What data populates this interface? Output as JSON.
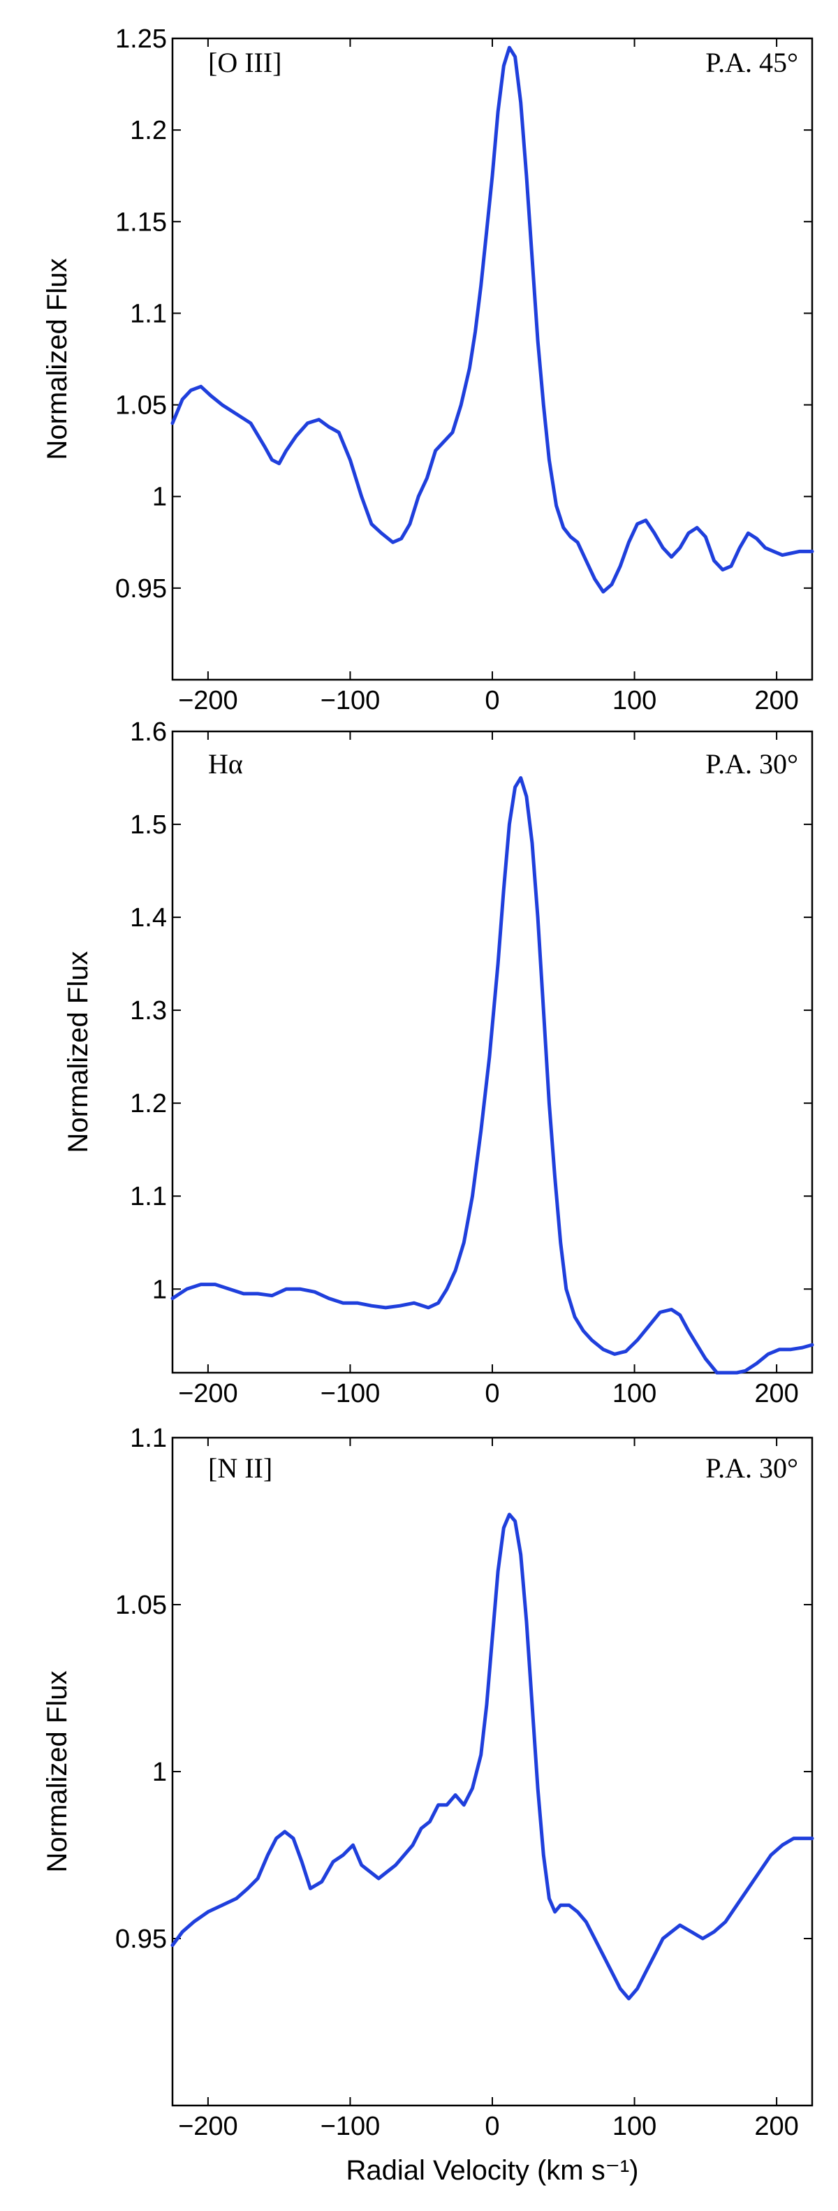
{
  "colors": {
    "line": "#1f3fdc",
    "axes": "#000000",
    "background": "#ffffff"
  },
  "chart_data": [
    {
      "type": "line",
      "title": "",
      "xlabel": "",
      "ylabel": "Normalized Flux",
      "annotations": {
        "left": "[O III]",
        "right": "P.A. 45°"
      },
      "xlim": [
        -225,
        225
      ],
      "ylim": [
        0.9,
        1.25
      ],
      "xticks": [
        -200,
        -100,
        0,
        100,
        200
      ],
      "xtick_labels": [
        "−200",
        "−100",
        "0",
        "100",
        "200"
      ],
      "yticks": [
        0.95,
        1,
        1.05,
        1.1,
        1.15,
        1.2,
        1.25
      ],
      "ytick_labels": [
        "0.95",
        "1",
        "1.05",
        "1.1",
        "1.15",
        "1.2",
        "1.25"
      ],
      "grid": false,
      "legend": "none",
      "series": [
        {
          "x": [
            -225,
            -218,
            -212,
            -205,
            -198,
            -190,
            -180,
            -170,
            -160,
            -155,
            -150,
            -145,
            -138,
            -130,
            -122,
            -115,
            -108,
            -100,
            -92,
            -85,
            -78,
            -70,
            -64,
            -58,
            -52,
            -46,
            -40,
            -34,
            -28,
            -22,
            -16,
            -12,
            -8,
            -4,
            0,
            4,
            8,
            12,
            16,
            20,
            24,
            28,
            32,
            36,
            40,
            45,
            50,
            55,
            60,
            66,
            72,
            78,
            84,
            90,
            96,
            102,
            108,
            114,
            120,
            126,
            132,
            138,
            144,
            150,
            156,
            162,
            168,
            174,
            180,
            186,
            192,
            198,
            204,
            210,
            216,
            225
          ],
          "y": [
            1.04,
            1.053,
            1.058,
            1.06,
            1.055,
            1.05,
            1.045,
            1.04,
            1.027,
            1.02,
            1.018,
            1.025,
            1.033,
            1.04,
            1.042,
            1.038,
            1.035,
            1.02,
            1.0,
            0.985,
            0.98,
            0.975,
            0.977,
            0.985,
            1.0,
            1.01,
            1.025,
            1.03,
            1.035,
            1.05,
            1.07,
            1.09,
            1.115,
            1.145,
            1.175,
            1.21,
            1.235,
            1.245,
            1.24,
            1.215,
            1.175,
            1.13,
            1.085,
            1.05,
            1.02,
            0.995,
            0.983,
            0.978,
            0.975,
            0.965,
            0.955,
            0.948,
            0.952,
            0.962,
            0.975,
            0.985,
            0.987,
            0.98,
            0.972,
            0.967,
            0.972,
            0.98,
            0.983,
            0.978,
            0.965,
            0.96,
            0.962,
            0.972,
            0.98,
            0.977,
            0.972,
            0.97,
            0.968,
            0.969,
            0.97,
            0.97
          ]
        }
      ]
    },
    {
      "type": "line",
      "title": "",
      "xlabel": "",
      "ylabel": "Normalized Flux",
      "annotations": {
        "left": "Hα",
        "right": "P.A. 30°"
      },
      "xlim": [
        -225,
        225
      ],
      "ylim": [
        0.91,
        1.6
      ],
      "xticks": [
        -200,
        -100,
        0,
        100,
        200
      ],
      "xtick_labels": [
        "−200",
        "−100",
        "0",
        "100",
        "200"
      ],
      "yticks": [
        1,
        1.1,
        1.2,
        1.3,
        1.4,
        1.5,
        1.6
      ],
      "ytick_labels": [
        "1",
        "1.1",
        "1.2",
        "1.3",
        "1.4",
        "1.5",
        "1.6"
      ],
      "grid": false,
      "legend": "none",
      "series": [
        {
          "x": [
            -225,
            -215,
            -205,
            -195,
            -185,
            -175,
            -165,
            -155,
            -145,
            -135,
            -125,
            -115,
            -105,
            -95,
            -85,
            -75,
            -65,
            -55,
            -45,
            -38,
            -32,
            -26,
            -20,
            -14,
            -8,
            -2,
            4,
            8,
            12,
            16,
            20,
            24,
            28,
            32,
            36,
            40,
            44,
            48,
            52,
            58,
            64,
            70,
            78,
            86,
            94,
            102,
            110,
            118,
            126,
            132,
            138,
            144,
            150,
            158,
            166,
            172,
            178,
            186,
            194,
            202,
            210,
            218,
            225
          ],
          "y": [
            0.99,
            1.0,
            1.005,
            1.005,
            1.0,
            0.995,
            0.995,
            0.993,
            1.0,
            1.0,
            0.997,
            0.99,
            0.985,
            0.985,
            0.982,
            0.98,
            0.982,
            0.985,
            0.98,
            0.985,
            1.0,
            1.02,
            1.05,
            1.1,
            1.17,
            1.25,
            1.35,
            1.43,
            1.5,
            1.54,
            1.55,
            1.53,
            1.48,
            1.4,
            1.3,
            1.2,
            1.12,
            1.05,
            1.0,
            0.97,
            0.955,
            0.945,
            0.935,
            0.93,
            0.933,
            0.945,
            0.96,
            0.975,
            0.978,
            0.972,
            0.955,
            0.94,
            0.925,
            0.91,
            0.905,
            0.905,
            0.912,
            0.92,
            0.93,
            0.935,
            0.935,
            0.937,
            0.94
          ]
        }
      ]
    },
    {
      "type": "line",
      "title": "",
      "xlabel": "Radial Velocity (km s⁻¹)",
      "ylabel": "Normalized Flux",
      "annotations": {
        "left": "[N II]",
        "right": "P.A. 30°"
      },
      "xlim": [
        -225,
        225
      ],
      "ylim": [
        0.9,
        1.1
      ],
      "xticks": [
        -200,
        -100,
        0,
        100,
        200
      ],
      "xtick_labels": [
        "−200",
        "−100",
        "0",
        "100",
        "200"
      ],
      "yticks": [
        0.95,
        1,
        1.05,
        1.1
      ],
      "ytick_labels": [
        "0.95",
        "1",
        "1.05",
        "1.1"
      ],
      "grid": false,
      "legend": "none",
      "series": [
        {
          "x": [
            -225,
            -218,
            -210,
            -200,
            -190,
            -180,
            -172,
            -165,
            -158,
            -152,
            -146,
            -140,
            -134,
            -128,
            -120,
            -112,
            -105,
            -98,
            -92,
            -86,
            -80,
            -74,
            -68,
            -62,
            -56,
            -50,
            -44,
            -38,
            -32,
            -26,
            -20,
            -14,
            -8,
            -4,
            0,
            4,
            8,
            12,
            16,
            20,
            24,
            28,
            32,
            36,
            40,
            44,
            48,
            54,
            60,
            66,
            72,
            78,
            84,
            90,
            96,
            102,
            108,
            114,
            120,
            126,
            132,
            140,
            148,
            156,
            164,
            172,
            180,
            188,
            196,
            204,
            212,
            220,
            225
          ],
          "y": [
            0.948,
            0.952,
            0.955,
            0.958,
            0.96,
            0.962,
            0.965,
            0.968,
            0.975,
            0.98,
            0.982,
            0.98,
            0.973,
            0.965,
            0.967,
            0.973,
            0.975,
            0.978,
            0.972,
            0.97,
            0.968,
            0.97,
            0.972,
            0.975,
            0.978,
            0.983,
            0.985,
            0.99,
            0.99,
            0.993,
            0.99,
            0.995,
            1.005,
            1.02,
            1.04,
            1.06,
            1.073,
            1.077,
            1.075,
            1.065,
            1.045,
            1.02,
            0.995,
            0.975,
            0.962,
            0.958,
            0.96,
            0.96,
            0.958,
            0.955,
            0.95,
            0.945,
            0.94,
            0.935,
            0.932,
            0.935,
            0.94,
            0.945,
            0.95,
            0.952,
            0.954,
            0.952,
            0.95,
            0.952,
            0.955,
            0.96,
            0.965,
            0.97,
            0.975,
            0.978,
            0.98,
            0.98,
            0.98
          ]
        }
      ]
    }
  ]
}
